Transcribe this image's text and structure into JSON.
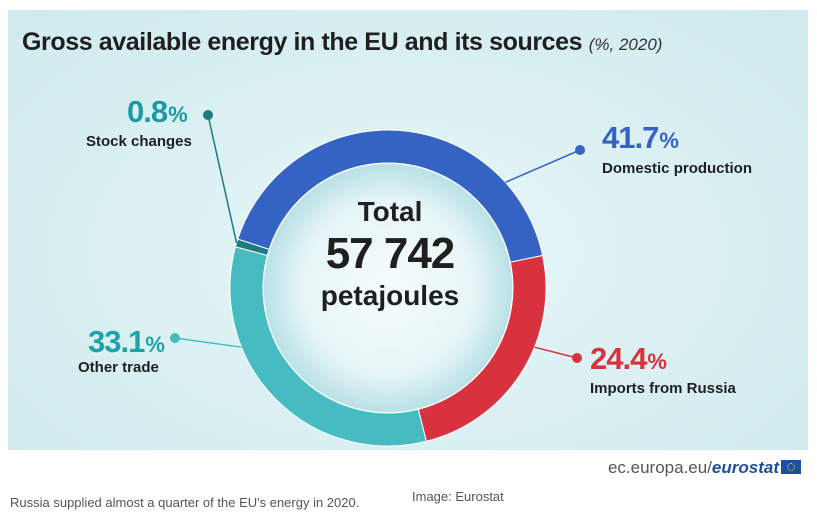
{
  "chart_data": {
    "type": "pie",
    "title": "Gross available energy in the EU and its sources",
    "title_unit": "(%, 2020)",
    "center_text": {
      "line1": "Total",
      "line2": "57 742",
      "line3": "petajoules"
    },
    "slices": [
      {
        "label": "Domestic production",
        "value": 41.7,
        "value_text": "41.7",
        "color": "#3563c4"
      },
      {
        "label": "Imports from Russia",
        "value": 24.4,
        "value_text": "24.4",
        "color": "#d8323f"
      },
      {
        "label": "Other trade",
        "value": 33.1,
        "value_text": "33.1",
        "color": "#46bcc2"
      },
      {
        "label": "Stock changes",
        "value": 0.8,
        "value_text": "0.8",
        "color": "#1c7a80"
      }
    ],
    "percent_sign": "%"
  },
  "label_colors": {
    "domestic": "#3563c4",
    "russia": "#d8323f",
    "other": "#1ba3aa",
    "stock": "#1b9aa1"
  },
  "source": {
    "domain": "ec.europa.eu/",
    "brand": "eurostat"
  },
  "caption": "Russia supplied almost a quarter of the EU's energy in 2020.",
  "credit": "Image: Eurostat"
}
